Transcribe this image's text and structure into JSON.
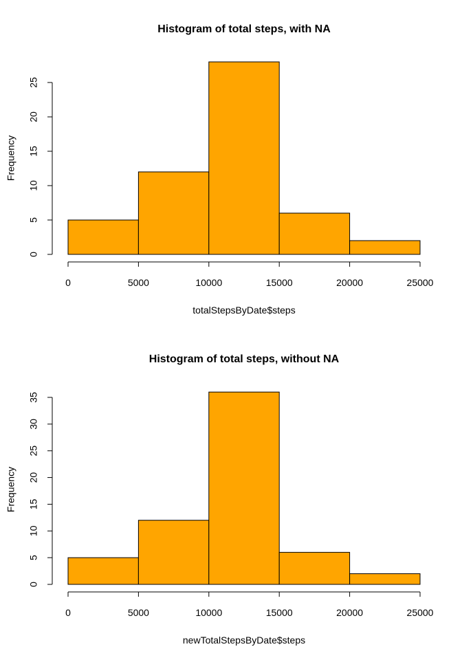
{
  "chart_data": [
    {
      "type": "bar",
      "title": "Histogram of total steps, with NA",
      "xlabel": "totalStepsByDate$steps",
      "ylabel": "Frequency",
      "bins": [
        [
          0,
          5000
        ],
        [
          5000,
          10000
        ],
        [
          10000,
          15000
        ],
        [
          15000,
          20000
        ],
        [
          20000,
          25000
        ]
      ],
      "values": [
        5,
        12,
        28,
        6,
        2
      ],
      "bar_color": "#FFA500",
      "x_ticks": [
        0,
        5000,
        10000,
        15000,
        20000,
        25000
      ],
      "y_ticks": [
        0,
        5,
        10,
        15,
        20,
        25
      ],
      "xlim": [
        0,
        25000
      ],
      "ylim": [
        0,
        29
      ]
    },
    {
      "type": "bar",
      "title": "Histogram of total steps, without NA",
      "xlabel": "newTotalStepsByDate$steps",
      "ylabel": "Frequency",
      "bins": [
        [
          0,
          5000
        ],
        [
          5000,
          10000
        ],
        [
          10000,
          15000
        ],
        [
          15000,
          20000
        ],
        [
          20000,
          25000
        ]
      ],
      "values": [
        5,
        12,
        36,
        6,
        2
      ],
      "bar_color": "#FFA500",
      "x_ticks": [
        0,
        5000,
        10000,
        15000,
        20000,
        25000
      ],
      "y_ticks": [
        0,
        5,
        10,
        15,
        20,
        25,
        30,
        35
      ],
      "xlim": [
        0,
        25000
      ],
      "ylim": [
        0,
        37
      ]
    }
  ]
}
